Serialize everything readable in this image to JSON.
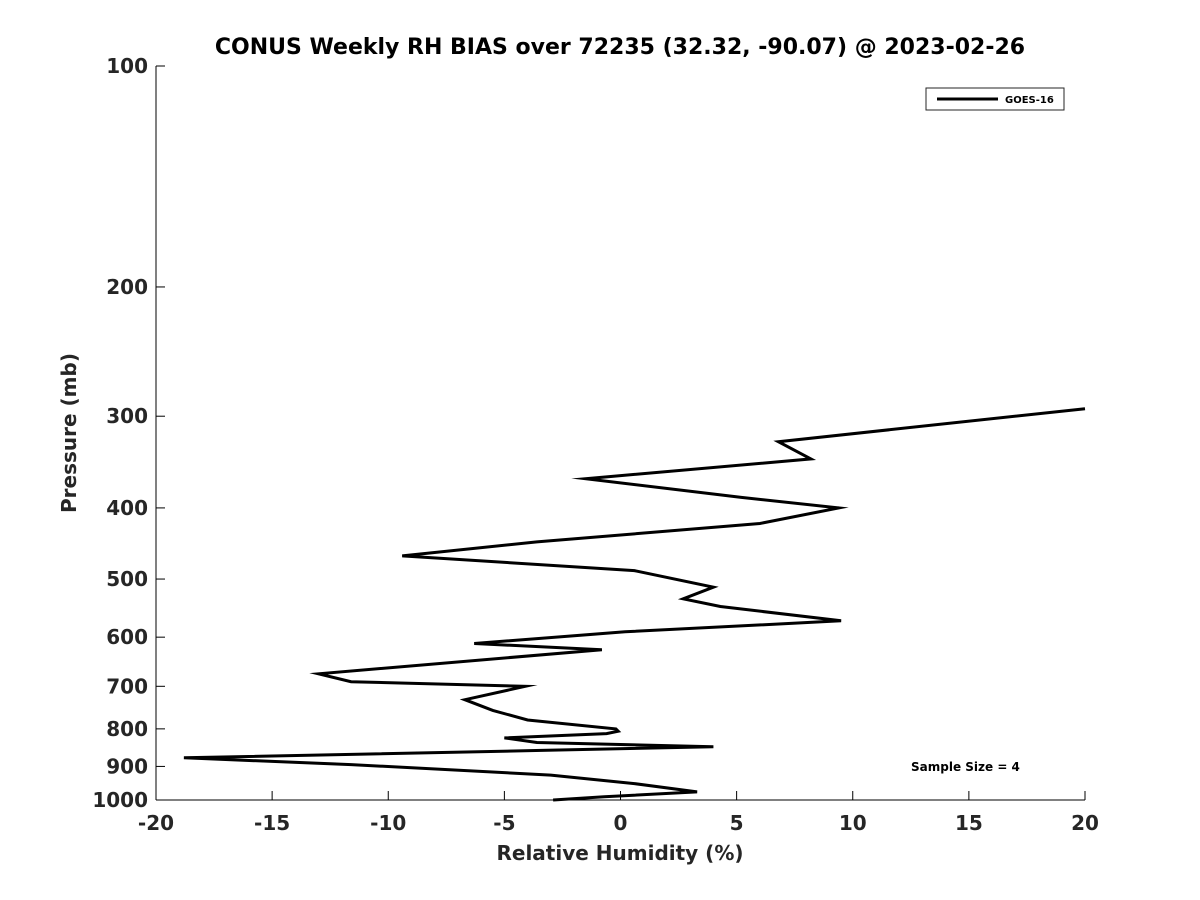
{
  "chart_data": {
    "type": "line",
    "title": "CONUS Weekly RH BIAS over 72235 (32.32, -90.07) @ 2023-02-26",
    "xlabel": "Relative Humidity (%)",
    "ylabel": "Pressure (mb)",
    "xlim": [
      -20,
      20
    ],
    "ylim": [
      100,
      1000
    ],
    "yscale": "log",
    "yaxis_reversed": true,
    "xticks": [
      -20,
      -15,
      -10,
      -5,
      0,
      5,
      10,
      15,
      20
    ],
    "xtick_labels": [
      "-20",
      "-15",
      "-10",
      "-5",
      "0",
      "5",
      "10",
      "15",
      "20"
    ],
    "yticks": [
      100,
      200,
      300,
      400,
      500,
      600,
      700,
      800,
      900,
      1000
    ],
    "ytick_labels": [
      "100",
      "200",
      "300",
      "400",
      "500",
      "600",
      "700",
      "800",
      "900",
      "1000"
    ],
    "grid": false,
    "legend_position": "top-right",
    "color": "#000000",
    "series": [
      {
        "name": "GOES-16",
        "x": [
          20.0,
          6.8,
          8.2,
          -1.5,
          5.2,
          9.4,
          6.0,
          -3.6,
          -9.4,
          0.6,
          4.0,
          2.7,
          4.3,
          9.5,
          0.2,
          -6.3,
          -0.8,
          -13.0,
          -11.6,
          -4.1,
          -6.7,
          -5.5,
          -4.0,
          -0.2,
          -0.1,
          -0.6,
          -5.0,
          -3.6,
          4.0,
          -3.4,
          -18.8,
          -11.6,
          -3.0,
          0.6,
          3.3,
          -0.7,
          -2.9
        ],
        "y": [
          293,
          325,
          343,
          365,
          387,
          400,
          420,
          445,
          465,
          487,
          513,
          532,
          545,
          570,
          590,
          612,
          624,
          673,
          690,
          700,
          730,
          755,
          778,
          800,
          806,
          812,
          823,
          835,
          846,
          856,
          876,
          895,
          925,
          950,
          975,
          990,
          1000
        ]
      }
    ],
    "annotation": "Sample Size = 4"
  }
}
